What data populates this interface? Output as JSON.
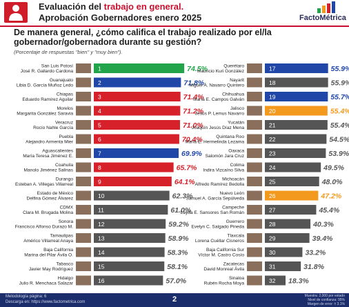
{
  "header": {
    "title_prefix": "Evaluación del ",
    "title_highlight": "trabajo en general.",
    "subtitle": "Aprobación Gobernadores enero 2025",
    "brand": "FactoMétrica"
  },
  "question": "De manera general, ¿cómo califica el trabajo realizado por el/la gobernador/gobernadora durante su gestión?",
  "note": "(Porcentaje de respuestas \"bien\" y \"muy bien\").",
  "footer": {
    "methodology_line1": "Metodología página: 6",
    "methodology_line2": "Descarga en: https://www.factometrica.com",
    "page_number": "2",
    "right_line1": "Muestra: 2,000 por estado",
    "right_line2": "Nivel de confianza: 95%",
    "right_line3": "Margen de error: ± 3.1%"
  },
  "colors": {
    "green": "#22a54a",
    "blue": "#2046a8",
    "red": "#d6202a",
    "orange": "#f39a1e",
    "dark": "#555555",
    "brand_red": "#c8102e",
    "footer": "#1c2d6b"
  },
  "chart_data": {
    "type": "bar",
    "title": "Aprobación Gobernadores enero 2025",
    "xlabel": "",
    "ylabel": "",
    "ylim": [
      0,
      100
    ],
    "unit": "%",
    "series": [
      {
        "values": [
          74.5,
          71.8,
          71.4,
          71.2,
          71.0,
          70.4,
          69.9,
          65.7,
          64.1,
          62.3,
          61.0,
          59.2,
          58.9,
          58.3,
          58.1,
          57.0,
          55.9,
          55.9,
          55.7,
          55.4,
          55.4,
          54.5,
          53.9,
          49.5,
          48.0,
          47.2,
          45.4,
          40.3,
          39.4,
          33.2,
          31.8,
          18.3
        ]
      }
    ],
    "items": [
      {
        "rank": "1",
        "state": "San Luis Potosí",
        "governor": "José R. Gallardo Cardona",
        "value": 74.5,
        "label": "74.5%",
        "color": "green"
      },
      {
        "rank": "2",
        "state": "Guanajuato",
        "governor": "Libia D. García Muñoz Ledo",
        "value": 71.8,
        "label": "71.8%",
        "color": "blue"
      },
      {
        "rank": "3",
        "state": "Chiapas",
        "governor": "Eduardo Ramírez Aguilar",
        "value": 71.4,
        "label": "71.4%",
        "color": "red"
      },
      {
        "rank": "4",
        "state": "Morelos",
        "governor": "Margarita González Saravia",
        "value": 71.2,
        "label": "71.2%",
        "color": "red"
      },
      {
        "rank": "5",
        "state": "Veracruz",
        "governor": "Rocío Nahle García",
        "value": 71.0,
        "label": "71.0%",
        "color": "red"
      },
      {
        "rank": "6",
        "state": "Puebla",
        "governor": "Alejandro Armenta Mier",
        "value": 70.4,
        "label": "70.4%",
        "color": "red"
      },
      {
        "rank": "7",
        "state": "Aguascalientes",
        "governor": "María Teresa Jiménez E.",
        "value": 69.9,
        "label": "69.9%",
        "color": "blue"
      },
      {
        "rank": "8",
        "state": "Coahuila",
        "governor": "Manolo Jiménez Salinas",
        "value": 65.7,
        "label": "65.7%",
        "color": "red"
      },
      {
        "rank": "9",
        "state": "Durango",
        "governor": "Esteban A. Villegas Villarreal",
        "value": 64.1,
        "label": "64.1%",
        "color": "red"
      },
      {
        "rank": "10",
        "state": "Estado de México",
        "governor": "Delfina Gómez Álvarez",
        "value": 62.3,
        "label": "62.3%",
        "color": "dark"
      },
      {
        "rank": "11",
        "state": "CDMX",
        "governor": "Clara M. Brugada Molina",
        "value": 61.0,
        "label": "61.0%",
        "color": "dark"
      },
      {
        "rank": "12",
        "state": "Sonora",
        "governor": "Francisco Alfonso Durazo M.",
        "value": 59.2,
        "label": "59.2%",
        "color": "dark"
      },
      {
        "rank": "13",
        "state": "Tamaulipas",
        "governor": "Américo Villarreal Anaya",
        "value": 58.9,
        "label": "58.9%",
        "color": "dark"
      },
      {
        "rank": "14",
        "state": "Baja California",
        "governor": "Marina del Pilar Ávila O.",
        "value": 58.3,
        "label": "58.3%",
        "color": "dark"
      },
      {
        "rank": "15",
        "state": "Tabasco",
        "governor": "Javier May Rodríguez",
        "value": 58.1,
        "label": "58.1%",
        "color": "dark"
      },
      {
        "rank": "16",
        "state": "Hidalgo",
        "governor": "Julio R. Menchaca Salazar",
        "value": 57.0,
        "label": "57.0%",
        "color": "dark"
      },
      {
        "rank": "17",
        "state": "Querétaro",
        "governor": "Mauricio Kuri González",
        "value": 55.9,
        "label": "55.9%",
        "color": "blue"
      },
      {
        "rank": "18",
        "state": "Nayarit",
        "governor": "Miguel Á. Navarro Quintero",
        "value": 55.9,
        "label": "55.9%",
        "color": "dark"
      },
      {
        "rank": "19",
        "state": "Chihuahua",
        "governor": "María E. Campos Galván",
        "value": 55.7,
        "label": "55.7%",
        "color": "blue"
      },
      {
        "rank": "20",
        "state": "Jalisco",
        "governor": "Jesús P. Lemus Navarro",
        "value": 55.4,
        "label": "55.4%",
        "color": "orange"
      },
      {
        "rank": "21",
        "state": "Yucatán",
        "governor": "Joaquín Jesús Díaz Mena",
        "value": 55.4,
        "label": "55.4%",
        "color": "dark"
      },
      {
        "rank": "22",
        "state": "Quintana Roo",
        "governor": "María E. Hermelinda Lezama",
        "value": 54.5,
        "label": "54.5%",
        "color": "dark"
      },
      {
        "rank": "23",
        "state": "Oaxaca",
        "governor": "Salomón Jara Cruz",
        "value": 53.9,
        "label": "53.9%",
        "color": "dark"
      },
      {
        "rank": "24",
        "state": "Colima",
        "governor": "Indira Vizcaíno Silva",
        "value": 49.5,
        "label": "49.5%",
        "color": "dark"
      },
      {
        "rank": "25",
        "state": "Michoacán",
        "governor": "Alfredo Ramírez Bedolla",
        "value": 48.0,
        "label": "48.0%",
        "color": "dark"
      },
      {
        "rank": "26",
        "state": "Nuevo León",
        "governor": "Samuel A. García Sepúlveda",
        "value": 47.2,
        "label": "47.2%",
        "color": "orange"
      },
      {
        "rank": "27",
        "state": "Campeche",
        "governor": "Layda E. Sansores San Román",
        "value": 45.4,
        "label": "45.4%",
        "color": "dark"
      },
      {
        "rank": "28",
        "state": "Guerrero",
        "governor": "Evelyn C. Salgado Pineda",
        "value": 40.3,
        "label": "40.3%",
        "color": "dark"
      },
      {
        "rank": "29",
        "state": "Tlaxcala",
        "governor": "Lorena Cuéllar Cisneros",
        "value": 39.4,
        "label": "39.4%",
        "color": "dark"
      },
      {
        "rank": "30",
        "state": "Baja California Sur",
        "governor": "Víctor M. Castro Cosío",
        "value": 33.2,
        "label": "33.2%",
        "color": "dark"
      },
      {
        "rank": "31",
        "state": "Zacatecas",
        "governor": "David Monreal Ávila",
        "value": 31.8,
        "label": "31.8%",
        "color": "dark"
      },
      {
        "rank": "32",
        "state": "Sinaloa",
        "governor": "Rubén Rocha Moya",
        "value": 18.3,
        "label": "18.3%",
        "color": "dark"
      }
    ]
  }
}
